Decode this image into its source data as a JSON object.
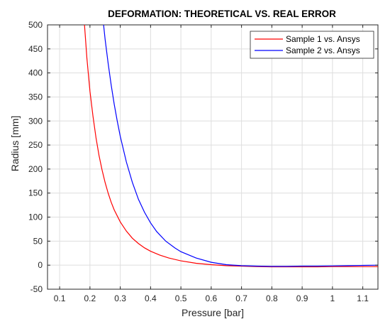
{
  "chart_data": {
    "type": "line",
    "title": "DEFORMATION: THEORETICAL VS. REAL ERROR",
    "xlabel": "Pressure [bar]",
    "ylabel": "Radius [mm]",
    "xlim": [
      0.06,
      1.15
    ],
    "ylim": [
      -50,
      500
    ],
    "xticks": [
      "0.1",
      "0.2",
      "0.3",
      "0.4",
      "0.5",
      "0.6",
      "0.7",
      "0.8",
      "0.9",
      "1",
      "1.1"
    ],
    "xtick_values": [
      0.1,
      0.2,
      0.3,
      0.4,
      0.5,
      0.6,
      0.7,
      0.8,
      0.9,
      1.0,
      1.1
    ],
    "yticks": [
      "-50",
      "0",
      "50",
      "100",
      "150",
      "200",
      "250",
      "300",
      "350",
      "400",
      "450",
      "500"
    ],
    "ytick_values": [
      -50,
      0,
      50,
      100,
      150,
      200,
      250,
      300,
      350,
      400,
      450,
      500
    ],
    "grid": true,
    "legend_position": "top-right",
    "series": [
      {
        "name": "Sample 1 vs. Ansys",
        "color": "#ff0000",
        "x": [
          0.182,
          0.19,
          0.2,
          0.21,
          0.22,
          0.23,
          0.24,
          0.25,
          0.26,
          0.27,
          0.28,
          0.3,
          0.32,
          0.34,
          0.36,
          0.38,
          0.4,
          0.43,
          0.46,
          0.5,
          0.55,
          0.6,
          0.65,
          0.7,
          0.75,
          0.8,
          0.85,
          0.9,
          0.95,
          1.0,
          1.05,
          1.1,
          1.15
        ],
        "y": [
          500,
          430,
          362,
          310,
          265,
          228,
          198,
          172,
          150,
          131,
          115,
          90,
          71,
          56,
          45,
          36,
          29,
          21,
          15,
          9,
          4,
          1,
          -1,
          -2,
          -3,
          -3.5,
          -3.5,
          -3.5,
          -3.5,
          -3,
          -3,
          -3,
          -3
        ]
      },
      {
        "name": "Sample 2 vs. Ansys",
        "color": "#0000ff",
        "x": [
          0.245,
          0.25,
          0.26,
          0.27,
          0.28,
          0.29,
          0.3,
          0.32,
          0.34,
          0.36,
          0.38,
          0.4,
          0.42,
          0.45,
          0.48,
          0.5,
          0.55,
          0.6,
          0.65,
          0.7,
          0.75,
          0.8,
          0.85,
          0.9,
          0.95,
          1.0,
          1.05,
          1.1,
          1.15
        ],
        "y": [
          500,
          470,
          420,
          375,
          335,
          300,
          268,
          215,
          172,
          137,
          110,
          88,
          70,
          50,
          36,
          28,
          15,
          6,
          1,
          -1,
          -2,
          -2.5,
          -2.5,
          -2,
          -2,
          -1.5,
          -1,
          -0.5,
          0
        ]
      }
    ]
  }
}
